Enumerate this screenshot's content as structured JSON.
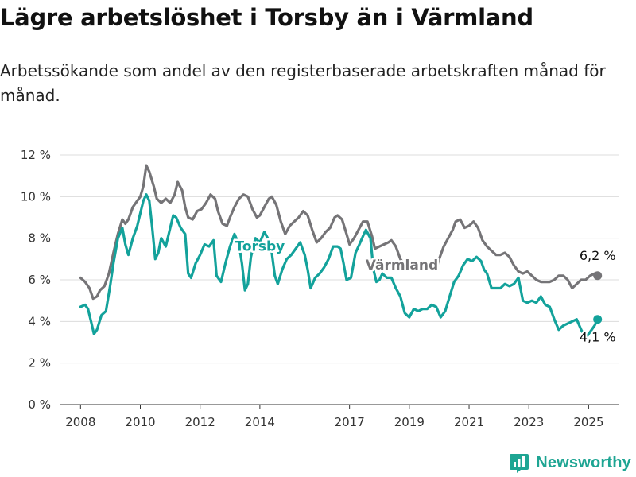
{
  "title": "Lägre arbetslöshet i Torsby än i Värmland",
  "subtitle": "Arbetssökande som andel av den registerbaserade arbetskraften månad för månad.",
  "brand": {
    "name": "Newsworthy",
    "icon": "newsworthy-logo-icon",
    "color": "#1ea593"
  },
  "chart_data": {
    "type": "line",
    "ylim": [
      0,
      12
    ],
    "xlim": [
      2007.3,
      2026.0
    ],
    "yticks": [
      0,
      2,
      4,
      6,
      8,
      10,
      12
    ],
    "ytick_labels": [
      "0 %",
      "2 %",
      "4 %",
      "6 %",
      "8 %",
      "10 %",
      "12 %"
    ],
    "xticks": [
      2008,
      2010,
      2012,
      2014,
      2017,
      2019,
      2021,
      2023,
      2025
    ],
    "xtick_labels": [
      "2008",
      "2010",
      "2012",
      "2014",
      "2017",
      "2019",
      "2021",
      "2023",
      "2025"
    ],
    "grid": true,
    "series": [
      {
        "name": "Värmland",
        "color": "#757477",
        "end_label": "6,2 %",
        "points": [
          [
            2008.0,
            6.1
          ],
          [
            2008.15,
            5.9
          ],
          [
            2008.3,
            5.6
          ],
          [
            2008.42,
            5.1
          ],
          [
            2008.55,
            5.2
          ],
          [
            2008.65,
            5.5
          ],
          [
            2008.8,
            5.7
          ],
          [
            2008.95,
            6.3
          ],
          [
            2009.1,
            7.3
          ],
          [
            2009.25,
            8.2
          ],
          [
            2009.4,
            8.9
          ],
          [
            2009.5,
            8.7
          ],
          [
            2009.6,
            8.9
          ],
          [
            2009.75,
            9.5
          ],
          [
            2009.9,
            9.8
          ],
          [
            2010.0,
            10.0
          ],
          [
            2010.1,
            10.5
          ],
          [
            2010.2,
            11.5
          ],
          [
            2010.3,
            11.2
          ],
          [
            2010.45,
            10.5
          ],
          [
            2010.55,
            9.9
          ],
          [
            2010.7,
            9.7
          ],
          [
            2010.85,
            9.9
          ],
          [
            2011.0,
            9.7
          ],
          [
            2011.15,
            10.1
          ],
          [
            2011.25,
            10.7
          ],
          [
            2011.4,
            10.3
          ],
          [
            2011.5,
            9.5
          ],
          [
            2011.6,
            9.0
          ],
          [
            2011.75,
            8.9
          ],
          [
            2011.9,
            9.3
          ],
          [
            2012.05,
            9.4
          ],
          [
            2012.2,
            9.7
          ],
          [
            2012.35,
            10.1
          ],
          [
            2012.5,
            9.9
          ],
          [
            2012.6,
            9.3
          ],
          [
            2012.75,
            8.7
          ],
          [
            2012.9,
            8.6
          ],
          [
            2013.0,
            9.0
          ],
          [
            2013.15,
            9.5
          ],
          [
            2013.3,
            9.9
          ],
          [
            2013.45,
            10.1
          ],
          [
            2013.6,
            10.0
          ],
          [
            2013.75,
            9.4
          ],
          [
            2013.9,
            9.0
          ],
          [
            2014.0,
            9.1
          ],
          [
            2014.15,
            9.5
          ],
          [
            2014.3,
            9.9
          ],
          [
            2014.4,
            10.0
          ],
          [
            2014.55,
            9.6
          ],
          [
            2014.7,
            8.8
          ],
          [
            2014.85,
            8.2
          ],
          [
            2015.0,
            8.6
          ],
          [
            2015.15,
            8.8
          ],
          [
            2015.3,
            9.0
          ],
          [
            2015.45,
            9.3
          ],
          [
            2015.6,
            9.1
          ],
          [
            2015.75,
            8.4
          ],
          [
            2015.9,
            7.8
          ],
          [
            2016.05,
            8.0
          ],
          [
            2016.2,
            8.3
          ],
          [
            2016.35,
            8.5
          ],
          [
            2016.5,
            9.0
          ],
          [
            2016.6,
            9.1
          ],
          [
            2016.75,
            8.9
          ],
          [
            2016.9,
            8.2
          ],
          [
            2017.0,
            7.7
          ],
          [
            2017.15,
            8.0
          ],
          [
            2017.3,
            8.4
          ],
          [
            2017.45,
            8.8
          ],
          [
            2017.6,
            8.8
          ],
          [
            2017.75,
            8.1
          ],
          [
            2017.85,
            7.5
          ],
          [
            2018.0,
            7.6
          ],
          [
            2018.15,
            7.7
          ],
          [
            2018.3,
            7.8
          ],
          [
            2018.4,
            7.9
          ],
          [
            2018.55,
            7.6
          ],
          [
            2018.7,
            7.0
          ],
          [
            2018.85,
            6.7
          ],
          [
            2019.0,
            6.6
          ],
          [
            2019.15,
            6.7
          ],
          [
            2019.3,
            6.8
          ],
          [
            2019.45,
            6.7
          ],
          [
            2019.6,
            6.7
          ],
          [
            2019.75,
            6.5
          ],
          [
            2019.9,
            6.5
          ],
          [
            2020.0,
            7.0
          ],
          [
            2020.15,
            7.6
          ],
          [
            2020.3,
            8.0
          ],
          [
            2020.45,
            8.4
          ],
          [
            2020.55,
            8.8
          ],
          [
            2020.7,
            8.9
          ],
          [
            2020.85,
            8.5
          ],
          [
            2021.0,
            8.6
          ],
          [
            2021.15,
            8.8
          ],
          [
            2021.3,
            8.5
          ],
          [
            2021.45,
            7.9
          ],
          [
            2021.6,
            7.6
          ],
          [
            2021.75,
            7.4
          ],
          [
            2021.9,
            7.2
          ],
          [
            2022.05,
            7.2
          ],
          [
            2022.2,
            7.3
          ],
          [
            2022.35,
            7.1
          ],
          [
            2022.5,
            6.7
          ],
          [
            2022.65,
            6.4
          ],
          [
            2022.8,
            6.3
          ],
          [
            2022.95,
            6.4
          ],
          [
            2023.1,
            6.2
          ],
          [
            2023.25,
            6.0
          ],
          [
            2023.4,
            5.9
          ],
          [
            2023.55,
            5.9
          ],
          [
            2023.7,
            5.9
          ],
          [
            2023.85,
            6.0
          ],
          [
            2024.0,
            6.2
          ],
          [
            2024.15,
            6.2
          ],
          [
            2024.3,
            6.0
          ],
          [
            2024.45,
            5.6
          ],
          [
            2024.6,
            5.8
          ],
          [
            2024.75,
            6.0
          ],
          [
            2024.9,
            6.0
          ],
          [
            2025.05,
            6.2
          ],
          [
            2025.2,
            6.3
          ],
          [
            2025.3,
            6.2
          ]
        ]
      },
      {
        "name": "Torsby",
        "color": "#13a29b",
        "end_label": "4,1 %",
        "points": [
          [
            2008.0,
            4.7
          ],
          [
            2008.15,
            4.8
          ],
          [
            2008.25,
            4.6
          ],
          [
            2008.35,
            4.0
          ],
          [
            2008.45,
            3.4
          ],
          [
            2008.55,
            3.6
          ],
          [
            2008.7,
            4.3
          ],
          [
            2008.85,
            4.5
          ],
          [
            2009.0,
            5.8
          ],
          [
            2009.1,
            6.8
          ],
          [
            2009.25,
            8.0
          ],
          [
            2009.4,
            8.5
          ],
          [
            2009.5,
            7.7
          ],
          [
            2009.6,
            7.2
          ],
          [
            2009.75,
            8.0
          ],
          [
            2009.9,
            8.6
          ],
          [
            2010.0,
            9.2
          ],
          [
            2010.1,
            9.8
          ],
          [
            2010.2,
            10.1
          ],
          [
            2010.3,
            9.8
          ],
          [
            2010.4,
            8.5
          ],
          [
            2010.5,
            7.0
          ],
          [
            2010.6,
            7.3
          ],
          [
            2010.7,
            8.0
          ],
          [
            2010.85,
            7.6
          ],
          [
            2011.0,
            8.5
          ],
          [
            2011.1,
            9.1
          ],
          [
            2011.2,
            9.0
          ],
          [
            2011.35,
            8.5
          ],
          [
            2011.5,
            8.2
          ],
          [
            2011.6,
            6.3
          ],
          [
            2011.7,
            6.1
          ],
          [
            2011.85,
            6.8
          ],
          [
            2012.0,
            7.2
          ],
          [
            2012.15,
            7.7
          ],
          [
            2012.3,
            7.6
          ],
          [
            2012.45,
            7.9
          ],
          [
            2012.55,
            6.2
          ],
          [
            2012.7,
            5.9
          ],
          [
            2012.85,
            6.8
          ],
          [
            2013.0,
            7.6
          ],
          [
            2013.15,
            8.2
          ],
          [
            2013.3,
            7.7
          ],
          [
            2013.4,
            6.8
          ],
          [
            2013.5,
            5.5
          ],
          [
            2013.6,
            5.8
          ],
          [
            2013.7,
            7.1
          ],
          [
            2013.85,
            8.0
          ],
          [
            2014.0,
            7.8
          ],
          [
            2014.15,
            8.3
          ],
          [
            2014.3,
            7.9
          ],
          [
            2014.4,
            7.3
          ],
          [
            2014.5,
            6.2
          ],
          [
            2014.6,
            5.8
          ],
          [
            2014.75,
            6.5
          ],
          [
            2014.9,
            7.0
          ],
          [
            2015.05,
            7.2
          ],
          [
            2015.2,
            7.5
          ],
          [
            2015.35,
            7.8
          ],
          [
            2015.5,
            7.2
          ],
          [
            2015.6,
            6.5
          ],
          [
            2015.7,
            5.6
          ],
          [
            2015.85,
            6.1
          ],
          [
            2016.0,
            6.3
          ],
          [
            2016.15,
            6.6
          ],
          [
            2016.3,
            7.0
          ],
          [
            2016.45,
            7.6
          ],
          [
            2016.6,
            7.6
          ],
          [
            2016.7,
            7.5
          ],
          [
            2016.8,
            6.8
          ],
          [
            2016.9,
            6.0
          ],
          [
            2017.05,
            6.1
          ],
          [
            2017.2,
            7.3
          ],
          [
            2017.3,
            7.6
          ],
          [
            2017.45,
            8.1
          ],
          [
            2017.55,
            8.4
          ],
          [
            2017.7,
            8.0
          ],
          [
            2017.8,
            6.5
          ],
          [
            2017.9,
            5.9
          ],
          [
            2018.0,
            6.0
          ],
          [
            2018.1,
            6.3
          ],
          [
            2018.25,
            6.1
          ],
          [
            2018.4,
            6.1
          ],
          [
            2018.55,
            5.6
          ],
          [
            2018.7,
            5.2
          ],
          [
            2018.85,
            4.4
          ],
          [
            2019.0,
            4.2
          ],
          [
            2019.15,
            4.6
          ],
          [
            2019.3,
            4.5
          ],
          [
            2019.45,
            4.6
          ],
          [
            2019.6,
            4.6
          ],
          [
            2019.75,
            4.8
          ],
          [
            2019.9,
            4.7
          ],
          [
            2020.05,
            4.2
          ],
          [
            2020.2,
            4.5
          ],
          [
            2020.35,
            5.2
          ],
          [
            2020.5,
            5.9
          ],
          [
            2020.65,
            6.2
          ],
          [
            2020.8,
            6.7
          ],
          [
            2020.95,
            7.0
          ],
          [
            2021.1,
            6.9
          ],
          [
            2021.25,
            7.1
          ],
          [
            2021.4,
            6.9
          ],
          [
            2021.5,
            6.5
          ],
          [
            2021.6,
            6.3
          ],
          [
            2021.75,
            5.6
          ],
          [
            2021.9,
            5.6
          ],
          [
            2022.05,
            5.6
          ],
          [
            2022.2,
            5.8
          ],
          [
            2022.35,
            5.7
          ],
          [
            2022.5,
            5.8
          ],
          [
            2022.65,
            6.1
          ],
          [
            2022.8,
            5.0
          ],
          [
            2022.95,
            4.9
          ],
          [
            2023.1,
            5.0
          ],
          [
            2023.25,
            4.9
          ],
          [
            2023.4,
            5.2
          ],
          [
            2023.55,
            4.8
          ],
          [
            2023.7,
            4.7
          ],
          [
            2023.85,
            4.1
          ],
          [
            2024.0,
            3.6
          ],
          [
            2024.15,
            3.8
          ],
          [
            2024.3,
            3.9
          ],
          [
            2024.45,
            4.0
          ],
          [
            2024.6,
            4.1
          ],
          [
            2024.75,
            3.6
          ],
          [
            2024.9,
            3.2
          ],
          [
            2025.05,
            3.5
          ],
          [
            2025.2,
            3.8
          ],
          [
            2025.3,
            4.1
          ]
        ]
      }
    ]
  }
}
